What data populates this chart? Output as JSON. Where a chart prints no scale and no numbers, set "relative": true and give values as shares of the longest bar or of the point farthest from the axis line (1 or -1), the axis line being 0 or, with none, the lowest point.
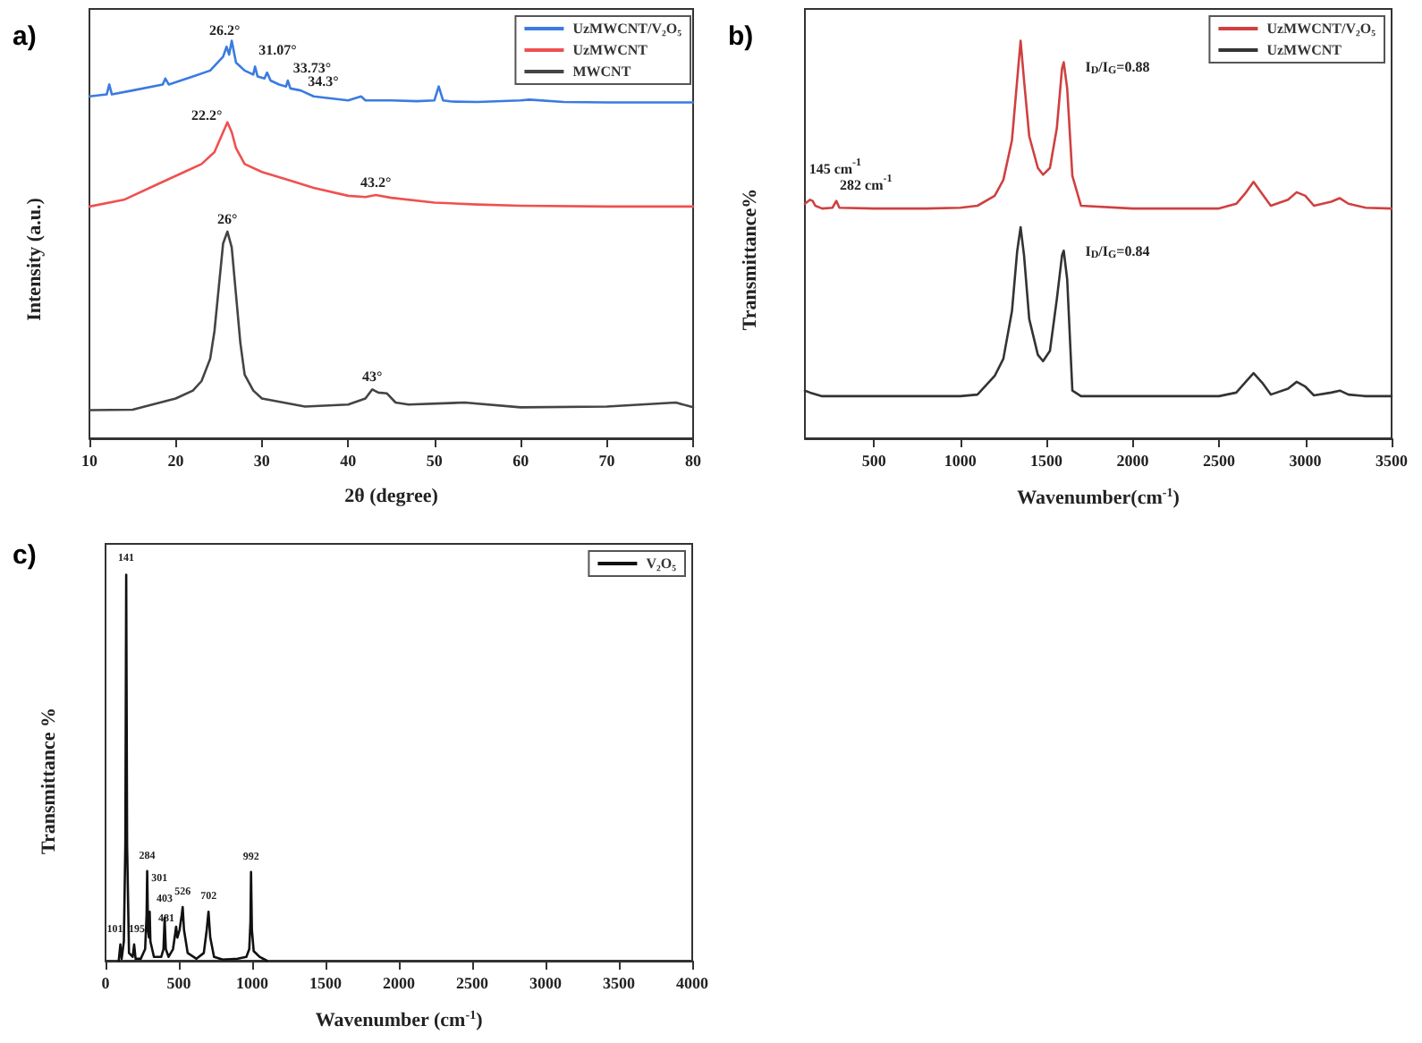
{
  "chart_data": [
    {
      "type": "line",
      "title": "a)",
      "xlabel": "2θ (degree)",
      "ylabel": "Intensity (a.u.)",
      "relative": true,
      "xlim": [
        10,
        80
      ],
      "xticks": [
        10,
        20,
        30,
        40,
        50,
        60,
        70,
        80
      ],
      "legend": "top right",
      "grid": false,
      "series": [
        {
          "name": "UzMWCNT/V₂O₅",
          "color": "#3a7be0",
          "x": [
            10,
            12,
            12.3,
            12.6,
            15,
            18.5,
            18.8,
            19.2,
            22,
            24,
            25.5,
            25.9,
            26.2,
            26.5,
            27,
            28,
            29,
            29.2,
            29.5,
            30.3,
            30.6,
            31,
            32,
            32.8,
            33,
            33.3,
            34.5,
            36,
            38,
            40,
            41.5,
            42,
            45,
            48,
            50,
            50.5,
            51,
            52,
            55,
            60,
            61,
            65,
            70,
            75,
            80
          ],
          "values": [
            0.86,
            0.865,
            0.89,
            0.865,
            0.875,
            0.89,
            0.905,
            0.89,
            0.91,
            0.925,
            0.96,
            0.985,
            0.965,
            1.0,
            0.945,
            0.925,
            0.915,
            0.935,
            0.91,
            0.905,
            0.92,
            0.9,
            0.89,
            0.885,
            0.9,
            0.88,
            0.875,
            0.86,
            0.855,
            0.85,
            0.86,
            0.85,
            0.85,
            0.848,
            0.85,
            0.885,
            0.85,
            0.847,
            0.846,
            0.85,
            0.852,
            0.846,
            0.845,
            0.845,
            0.845
          ]
        },
        {
          "name": "UzMWCNT",
          "color": "#f05050",
          "x": [
            10,
            14,
            18,
            21,
            23,
            24.5,
            25.5,
            26,
            26.5,
            27,
            28,
            30,
            33,
            36,
            40,
            42,
            43.2,
            45,
            50,
            55,
            60,
            70,
            80
          ],
          "values": [
            0.583,
            0.6,
            0.64,
            0.67,
            0.69,
            0.72,
            0.77,
            0.795,
            0.77,
            0.73,
            0.69,
            0.67,
            0.65,
            0.63,
            0.61,
            0.607,
            0.612,
            0.605,
            0.593,
            0.588,
            0.585,
            0.583,
            0.583
          ]
        },
        {
          "name": "MWCNT",
          "color": "#444444",
          "x": [
            10,
            15,
            20,
            22,
            23,
            24,
            24.5,
            25,
            25.5,
            26,
            26.5,
            27,
            27.5,
            28,
            29,
            30,
            35,
            40,
            42,
            42.8,
            43.5,
            44.5,
            45.5,
            47,
            53.5,
            60,
            70,
            78,
            80
          ],
          "values": [
            0.071,
            0.072,
            0.1,
            0.12,
            0.144,
            0.2,
            0.27,
            0.38,
            0.49,
            0.52,
            0.48,
            0.36,
            0.24,
            0.16,
            0.12,
            0.1,
            0.08,
            0.085,
            0.1,
            0.123,
            0.115,
            0.113,
            0.09,
            0.085,
            0.09,
            0.078,
            0.08,
            0.09,
            0.078
          ]
        }
      ],
      "annotations": [
        {
          "text": "26.2°",
          "x": 26.5,
          "y": 1.0
        },
        {
          "text": "31.07°",
          "x": 29.2,
          "y": 0.935
        },
        {
          "text": "33.73°",
          "x": 33,
          "y": 0.9
        },
        {
          "text": "34.3°",
          "x": 34.5,
          "y": 0.875
        },
        {
          "text": "22.2°",
          "x": 26,
          "y": 0.795
        },
        {
          "text": "43.2°",
          "x": 43.2,
          "y": 0.612
        },
        {
          "text": "26°",
          "x": 26,
          "y": 0.52
        },
        {
          "text": "43°",
          "x": 42.8,
          "y": 0.123
        }
      ]
    },
    {
      "type": "line",
      "title": "b)",
      "xlabel": "Wavenumber(cm$^{-1}$)",
      "ylabel": "Transmittance%",
      "relative": true,
      "xlim": [
        100,
        3500
      ],
      "xticks": [
        500,
        1000,
        1500,
        2000,
        2500,
        3000,
        3500
      ],
      "legend": "top right",
      "grid": false,
      "series": [
        {
          "name": "UzMWCNT/V₂O₅",
          "color": "#d04040",
          "x": [
            100,
            130,
            145,
            160,
            200,
            260,
            282,
            300,
            500,
            800,
            1000,
            1100,
            1200,
            1250,
            1300,
            1330,
            1350,
            1370,
            1400,
            1450,
            1480,
            1520,
            1560,
            1590,
            1600,
            1620,
            1650,
            1700,
            2000,
            2500,
            2600,
            2650,
            2700,
            2750,
            2800,
            2900,
            2950,
            3000,
            3050,
            3150,
            3200,
            3250,
            3350,
            3500
          ],
          "values": [
            0.59,
            0.6,
            0.597,
            0.585,
            0.578,
            0.58,
            0.597,
            0.58,
            0.578,
            0.578,
            0.58,
            0.585,
            0.61,
            0.65,
            0.75,
            0.9,
            1.0,
            0.9,
            0.76,
            0.68,
            0.663,
            0.68,
            0.78,
            0.93,
            0.946,
            0.88,
            0.66,
            0.585,
            0.578,
            0.578,
            0.59,
            0.615,
            0.645,
            0.615,
            0.585,
            0.6,
            0.619,
            0.61,
            0.585,
            0.595,
            0.604,
            0.59,
            0.58,
            0.578
          ]
        },
        {
          "name": "UzMWCNT",
          "color": "#333333",
          "x": [
            100,
            130,
            200,
            500,
            1000,
            1100,
            1200,
            1250,
            1300,
            1330,
            1350,
            1370,
            1400,
            1450,
            1480,
            1520,
            1560,
            1590,
            1600,
            1620,
            1650,
            1700,
            2000,
            2500,
            2600,
            2650,
            2700,
            2750,
            2800,
            2900,
            2950,
            3000,
            3050,
            3150,
            3200,
            3250,
            3350,
            3500
          ],
          "values": [
            0.12,
            0.115,
            0.106,
            0.106,
            0.106,
            0.11,
            0.157,
            0.2,
            0.32,
            0.47,
            0.531,
            0.46,
            0.3,
            0.21,
            0.194,
            0.22,
            0.35,
            0.46,
            0.472,
            0.4,
            0.12,
            0.106,
            0.106,
            0.106,
            0.115,
            0.14,
            0.164,
            0.14,
            0.11,
            0.125,
            0.142,
            0.13,
            0.108,
            0.115,
            0.12,
            0.11,
            0.106,
            0.106
          ]
        }
      ],
      "annotations": [
        {
          "text": "I$_{D}$/I$_{G}$=0.88",
          "x": 1600,
          "y": 0.946
        },
        {
          "text": "I$_{D}$/I$_{G}$=0.84",
          "x": 1600,
          "y": 0.472
        },
        {
          "text": "145 cm$^{-1}$",
          "x": 145,
          "y": 0.597
        },
        {
          "text": "282 cm$^{-1}$",
          "x": 282,
          "y": 0.597
        }
      ]
    },
    {
      "type": "line",
      "title": "c)",
      "xlabel": "Wavenumber (cm$^{-1}$)",
      "ylabel": "Transmittance %",
      "relative": true,
      "xlim": [
        0,
        4000
      ],
      "xticks": [
        0,
        500,
        1000,
        1500,
        2000,
        2500,
        3000,
        3500,
        4000
      ],
      "legend": "top right",
      "grid": false,
      "series": [
        {
          "name": "V₂O₅",
          "color": "#111111",
          "x": [
            90,
            101,
            110,
            125,
            135,
            141,
            147,
            160,
            185,
            195,
            205,
            240,
            270,
            280,
            284,
            290,
            296,
            301,
            306,
            330,
            380,
            395,
            403,
            411,
            430,
            460,
            475,
            481,
            490,
            505,
            520,
            526,
            535,
            560,
            620,
            670,
            690,
            702,
            714,
            740,
            800,
            900,
            960,
            980,
            988,
            992,
            998,
            1010,
            1050,
            1100
          ],
          "values": [
            0,
            0.042,
            0.005,
            0.05,
            0.3,
            1.0,
            0.3,
            0.02,
            0.01,
            0.042,
            0.005,
            0.005,
            0.03,
            0.12,
            0.232,
            0.08,
            0.06,
            0.127,
            0.05,
            0.01,
            0.01,
            0.03,
            0.111,
            0.03,
            0.01,
            0.03,
            0.07,
            0.088,
            0.06,
            0.08,
            0.12,
            0.139,
            0.08,
            0.02,
            0.005,
            0.02,
            0.08,
            0.127,
            0.06,
            0.01,
            0.003,
            0.005,
            0.01,
            0.03,
            0.1,
            0.23,
            0.08,
            0.025,
            0.01,
            0
          ]
        }
      ],
      "annotations": [
        {
          "text": "101",
          "x": 101,
          "y": 0.042
        },
        {
          "text": "141",
          "x": 141,
          "y": 1.0
        },
        {
          "text": "195",
          "x": 195,
          "y": 0.042
        },
        {
          "text": "284",
          "x": 284,
          "y": 0.232
        },
        {
          "text": "301",
          "x": 301,
          "y": 0.127
        },
        {
          "text": "403",
          "x": 403,
          "y": 0.111
        },
        {
          "text": "481",
          "x": 481,
          "y": 0.088
        },
        {
          "text": "526",
          "x": 526,
          "y": 0.139
        },
        {
          "text": "702",
          "x": 702,
          "y": 0.127
        },
        {
          "text": "992",
          "x": 992,
          "y": 0.23
        }
      ]
    }
  ]
}
